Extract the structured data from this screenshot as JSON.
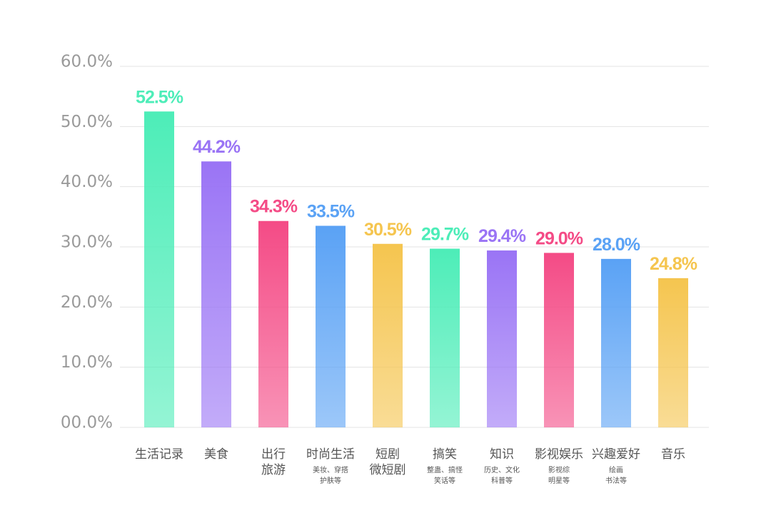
{
  "chart_data": {
    "type": "bar",
    "categories": [
      "生活记录",
      "美食",
      "出行\n旅游",
      "时尚生活",
      "短剧\n微短剧",
      "搞笑",
      "知识",
      "影视娱乐",
      "兴趣爱好",
      "音乐"
    ],
    "category_notes": [
      null,
      null,
      null,
      "美妆、穿搭\n护肤等",
      null,
      "整蛊、搞怪\n笑话等",
      "历史、文化\n科普等",
      "影视综\n明星等",
      "绘画\n书法等",
      null
    ],
    "values": [
      52.5,
      44.2,
      34.3,
      33.5,
      30.5,
      29.7,
      29.4,
      29.0,
      28.0,
      24.8
    ],
    "value_labels": [
      "52.5%",
      "44.2%",
      "34.3%",
      "33.5%",
      "30.5%",
      "29.7%",
      "29.4%",
      "29.0%",
      "28.0%",
      "24.8%"
    ],
    "colors": [
      "#4dedb8",
      "#9a74f5",
      "#f44b86",
      "#5aa2f5",
      "#f5c54f",
      "#4dedb8",
      "#9a74f5",
      "#f44b86",
      "#5aa2f5",
      "#f5c54f"
    ],
    "ylim": [
      0,
      60
    ],
    "yticks": [
      {
        "value": 0,
        "label": "00.0%"
      },
      {
        "value": 10,
        "label": "10.0%"
      },
      {
        "value": 20,
        "label": "20.0%"
      },
      {
        "value": 30,
        "label": "30.0%"
      },
      {
        "value": 40,
        "label": "40.0%"
      },
      {
        "value": 50,
        "label": "50.0%"
      },
      {
        "value": 60,
        "label": "60.0%"
      }
    ],
    "grid": true
  }
}
